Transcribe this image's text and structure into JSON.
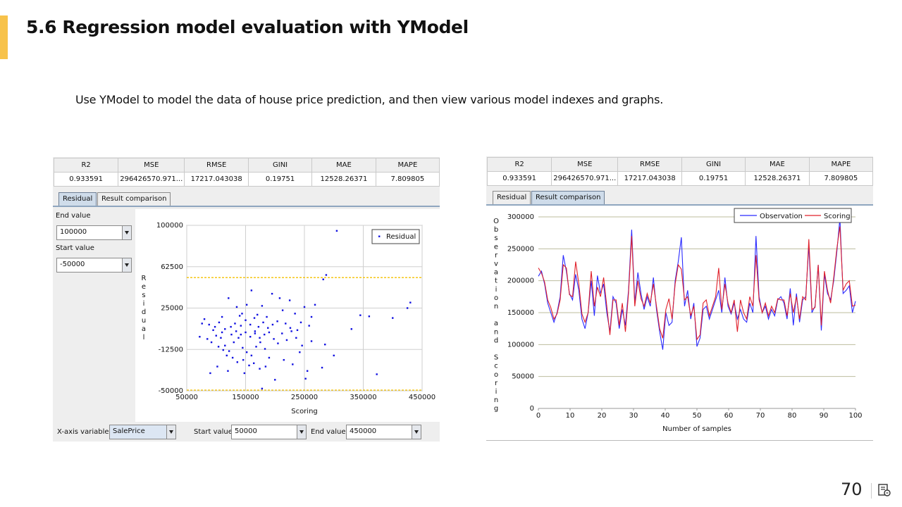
{
  "slide": {
    "title": "5.6 Regression model evaluation with YModel",
    "description": "Use YModel to model the data of house price prediction, and then view various model indexes and graphs.",
    "page_number": "70",
    "accent_color": "#f7c24a"
  },
  "metrics": {
    "headers": [
      "R2",
      "MSE",
      "RMSE",
      "GINI",
      "MAE",
      "MAPE"
    ],
    "values": [
      "0.933591",
      "296426570.971...",
      "17217.043038",
      "0.19751",
      "12528.26371",
      "7.809805"
    ]
  },
  "left_panel": {
    "tabs": [
      "Residual",
      "Result comparison"
    ],
    "active_tab": "Residual",
    "end_value_label": "End value",
    "end_value": "100000",
    "start_value_label": "Start value",
    "start_value": "-50000",
    "bottom": {
      "x_axis_variable_label": "X-axis variable",
      "x_axis_variable": "SalePrice",
      "start_value_label": "Start value",
      "start_value": "50000",
      "end_value_label": "End value",
      "end_value": "450000"
    }
  },
  "right_panel": {
    "tabs": [
      "Residual",
      "Result comparison"
    ],
    "active_tab": "Result comparison"
  },
  "chart_data": [
    {
      "type": "scatter",
      "title": "",
      "xlabel": "Scoring",
      "ylabel": "Residual",
      "xlim": [
        50000,
        450000
      ],
      "ylim": [
        -50000,
        100000
      ],
      "xticks": [
        50000,
        150000,
        250000,
        350000,
        450000
      ],
      "yticks": [
        -50000,
        -12500,
        25000,
        62500,
        100000
      ],
      "reference_lines_y": [
        52000,
        -50000
      ],
      "reference_line_color": "#f4c000",
      "legend": {
        "position": "top-right",
        "entries": [
          "Residual"
        ]
      },
      "series": [
        {
          "name": "Residual",
          "color": "#1010e0",
          "points": [
            [
              305000,
              95000
            ],
            [
              287000,
              55000
            ],
            [
              282000,
              51000
            ],
            [
              430000,
              30000
            ],
            [
              425000,
              25000
            ],
            [
              345000,
              18500
            ],
            [
              360000,
              17500
            ],
            [
              400000,
              16000
            ],
            [
              330000,
              6000
            ],
            [
              300000,
              -18000
            ],
            [
              285000,
              -8000
            ],
            [
              280000,
              -29000
            ],
            [
              373000,
              -35000
            ],
            [
              268000,
              28000
            ],
            [
              262000,
              17000
            ],
            [
              250000,
              26000
            ],
            [
              244000,
              12000
            ],
            [
              258000,
              9000
            ],
            [
              255000,
              -32000
            ],
            [
              252000,
              -39000
            ],
            [
              234000,
              20000
            ],
            [
              225000,
              32000
            ],
            [
              213000,
              23000
            ],
            [
              208000,
              34000
            ],
            [
              195000,
              38000
            ],
            [
              178000,
              27000
            ],
            [
              165000,
              16000
            ],
            [
              160000,
              41000
            ],
            [
              152000,
              28000
            ],
            [
              140000,
              18000
            ],
            [
              135000,
              26000
            ],
            [
              121000,
              34000
            ],
            [
              110000,
              17000
            ],
            [
              105000,
              12000
            ],
            [
              95000,
              5000
            ],
            [
              80000,
              15000
            ],
            [
              76000,
              11000
            ],
            [
              72000,
              -1000
            ],
            [
              85000,
              -3000
            ],
            [
              92000,
              -6000
            ],
            [
              100000,
              0
            ],
            [
              108000,
              -2000
            ],
            [
              115000,
              -9000
            ],
            [
              122000,
              -14000
            ],
            [
              130000,
              -6000
            ],
            [
              138000,
              -2000
            ],
            [
              145000,
              -11000
            ],
            [
              152000,
              -15000
            ],
            [
              160000,
              -18000
            ],
            [
              168000,
              -10000
            ],
            [
              175000,
              -6000
            ],
            [
              183000,
              -12000
            ],
            [
              190000,
              -20000
            ],
            [
              198000,
              -3000
            ],
            [
              205000,
              -7000
            ],
            [
              212000,
              2000
            ],
            [
              220000,
              -4000
            ],
            [
              228000,
              4000
            ],
            [
              236000,
              -2000
            ],
            [
              242000,
              -15000
            ],
            [
              115000,
              6000
            ],
            [
              125000,
              8000
            ],
            [
              132000,
              11000
            ],
            [
              142000,
              9000
            ],
            [
              150000,
              14000
            ],
            [
              158000,
              10000
            ],
            [
              166000,
              4000
            ],
            [
              172000,
              8000
            ],
            [
              180000,
              12000
            ],
            [
              188000,
              7000
            ],
            [
              196000,
              10000
            ],
            [
              204000,
              13000
            ],
            [
              118000,
              -18000
            ],
            [
              128000,
              -20000
            ],
            [
              136000,
              -24000
            ],
            [
              146000,
              -22000
            ],
            [
              156000,
              -27000
            ],
            [
              164000,
              -25000
            ],
            [
              174000,
              -30000
            ],
            [
              184000,
              -28000
            ],
            [
              120000,
              -32000
            ],
            [
              102000,
              -28000
            ],
            [
              90000,
              -34000
            ],
            [
              148000,
              -34000
            ],
            [
              200000,
              -40000
            ],
            [
              178000,
              -48000
            ],
            [
              215000,
              -22000
            ],
            [
              230000,
              -26000
            ],
            [
              110000,
              3000
            ],
            [
              126000,
              1000
            ],
            [
              134000,
              4000
            ],
            [
              142000,
              1000
            ],
            [
              150000,
              3000
            ],
            [
              158000,
              -1000
            ],
            [
              166000,
              2000
            ],
            [
              174000,
              -2000
            ],
            [
              182000,
              1000
            ],
            [
              190000,
              3000
            ],
            [
              104000,
              -10000
            ],
            [
              112000,
              -13000
            ],
            [
              98000,
              8000
            ],
            [
              88000,
              10000
            ],
            [
              144000,
              20000
            ],
            [
              170000,
              19000
            ],
            [
              186000,
              17000
            ],
            [
              218000,
              11000
            ],
            [
              226000,
              7000
            ],
            [
              238000,
              5000
            ],
            [
              246000,
              -9000
            ],
            [
              262000,
              -5000
            ]
          ]
        }
      ]
    },
    {
      "type": "line",
      "title": "",
      "xlabel": "Number of samples",
      "ylabel": "Observation and Scoring",
      "xlim": [
        0,
        100
      ],
      "ylim": [
        0,
        300000
      ],
      "xticks": [
        0,
        10,
        20,
        30,
        40,
        50,
        60,
        70,
        80,
        90,
        100
      ],
      "yticks": [
        0,
        50000,
        100000,
        150000,
        200000,
        250000,
        300000
      ],
      "grid": true,
      "legend": {
        "position": "top-right",
        "entries": [
          "Observation",
          "Scoring"
        ]
      },
      "series": [
        {
          "name": "Observation",
          "color": "#2b2bff",
          "values": [
            207000,
            215000,
            195000,
            165000,
            150000,
            135000,
            150000,
            175000,
            240000,
            215000,
            180000,
            170000,
            210000,
            185000,
            140000,
            125000,
            150000,
            200000,
            145000,
            208000,
            180000,
            195000,
            150000,
            120000,
            175000,
            165000,
            125000,
            155000,
            130000,
            185000,
            280000,
            165000,
            213000,
            180000,
            155000,
            175000,
            160000,
            205000,
            155000,
            120000,
            92000,
            150000,
            130000,
            135000,
            200000,
            230000,
            268000,
            160000,
            185000,
            140000,
            165000,
            97000,
            110000,
            155000,
            160000,
            140000,
            155000,
            170000,
            185000,
            150000,
            205000,
            160000,
            148000,
            165000,
            140000,
            155000,
            140000,
            135000,
            165000,
            150000,
            270000,
            175000,
            150000,
            160000,
            140000,
            155000,
            145000,
            170000,
            175000,
            165000,
            140000,
            188000,
            130000,
            180000,
            135000,
            170000,
            175000,
            255000,
            150000,
            160000,
            225000,
            122000,
            210000,
            180000,
            170000,
            200000,
            245000,
            298000,
            180000,
            185000,
            192000,
            150000,
            168000
          ]
        },
        {
          "name": "Scoring",
          "color": "#e0202a",
          "values": [
            220000,
            212000,
            198000,
            170000,
            158000,
            140000,
            148000,
            170000,
            225000,
            220000,
            178000,
            175000,
            230000,
            195000,
            148000,
            135000,
            150000,
            215000,
            160000,
            190000,
            175000,
            205000,
            160000,
            115000,
            170000,
            170000,
            130000,
            165000,
            120000,
            180000,
            270000,
            160000,
            200000,
            172000,
            160000,
            180000,
            165000,
            195000,
            160000,
            125000,
            110000,
            155000,
            172000,
            140000,
            195000,
            225000,
            218000,
            170000,
            175000,
            145000,
            160000,
            108000,
            115000,
            165000,
            170000,
            145000,
            160000,
            175000,
            220000,
            155000,
            195000,
            165000,
            150000,
            170000,
            120000,
            170000,
            150000,
            140000,
            175000,
            160000,
            240000,
            170000,
            150000,
            165000,
            145000,
            160000,
            150000,
            172000,
            170000,
            170000,
            145000,
            180000,
            150000,
            175000,
            140000,
            175000,
            170000,
            265000,
            155000,
            158000,
            225000,
            130000,
            215000,
            185000,
            165000,
            205000,
            250000,
            285000,
            185000,
            195000,
            200000,
            160000,
            162000
          ]
        }
      ]
    }
  ]
}
